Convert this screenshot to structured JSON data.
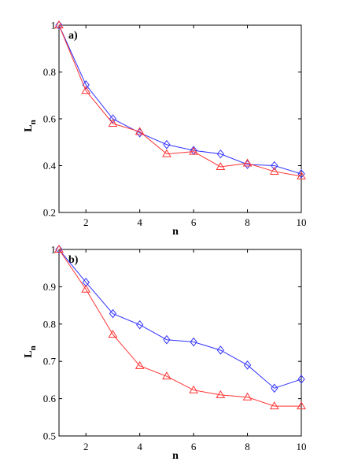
{
  "chart_data": [
    {
      "type": "line",
      "panel_label": "a)",
      "xlabel": "n",
      "ylabel_main": "L",
      "ylabel_sub": "n",
      "xlim": [
        1,
        10
      ],
      "ylim": [
        0.2,
        1
      ],
      "xticks": [
        2,
        4,
        6,
        8,
        10
      ],
      "yticks": [
        0.2,
        0.4,
        0.6,
        0.8,
        1
      ],
      "ytick_labels": [
        "0.2",
        "0.4",
        "0.6",
        "0.8",
        "1"
      ],
      "grid": false,
      "x": [
        1,
        2,
        3,
        4,
        5,
        6,
        7,
        8,
        9,
        10
      ],
      "series": [
        {
          "color": "#3333ff",
          "marker": "diamond",
          "values": [
            1.0,
            0.745,
            0.6,
            0.54,
            0.49,
            0.465,
            0.45,
            0.405,
            0.4,
            0.365
          ]
        },
        {
          "color": "#ff3333",
          "marker": "triangle",
          "values": [
            1.0,
            0.72,
            0.58,
            0.545,
            0.45,
            0.46,
            0.395,
            0.41,
            0.375,
            0.355
          ]
        }
      ]
    },
    {
      "type": "line",
      "panel_label": "b)",
      "xlabel": "n",
      "ylabel_main": "L",
      "ylabel_sub": "n",
      "xlim": [
        1,
        10
      ],
      "ylim": [
        0.5,
        1
      ],
      "xticks": [
        2,
        4,
        6,
        8,
        10
      ],
      "yticks": [
        0.5,
        0.6,
        0.7,
        0.8,
        0.9,
        1
      ],
      "ytick_labels": [
        "0.5",
        "0.6",
        "0.7",
        "0.8",
        "0.9",
        "1"
      ],
      "grid": false,
      "x": [
        1,
        2,
        3,
        4,
        5,
        6,
        7,
        8,
        9,
        10
      ],
      "series": [
        {
          "color": "#3333ff",
          "marker": "diamond",
          "values": [
            1.0,
            0.912,
            0.828,
            0.798,
            0.758,
            0.752,
            0.73,
            0.69,
            0.628,
            0.652
          ]
        },
        {
          "color": "#ff3333",
          "marker": "triangle",
          "values": [
            1.0,
            0.893,
            0.772,
            0.688,
            0.66,
            0.623,
            0.61,
            0.604,
            0.58,
            0.58
          ]
        }
      ]
    }
  ]
}
